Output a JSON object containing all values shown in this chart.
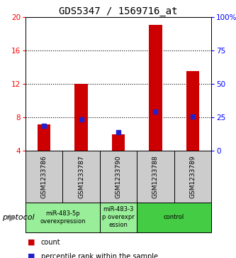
{
  "title": "GDS5347 / 1569716_at",
  "samples": [
    "GSM1233786",
    "GSM1233787",
    "GSM1233790",
    "GSM1233788",
    "GSM1233789"
  ],
  "bar_bottom": 4,
  "bar_tops": [
    7.2,
    12.0,
    6.0,
    19.0,
    13.5
  ],
  "percentile_values": [
    7.0,
    7.8,
    6.2,
    8.7,
    8.1
  ],
  "ylim_left": [
    4,
    20
  ],
  "ylim_right": [
    0,
    100
  ],
  "yticks_left": [
    4,
    8,
    12,
    16,
    20
  ],
  "yticks_right": [
    0,
    25,
    50,
    75,
    100
  ],
  "ytick_labels_right": [
    "0",
    "25",
    "50",
    "75",
    "100%"
  ],
  "bar_color": "#cc0000",
  "marker_color": "#2222cc",
  "grid_color": "#000000",
  "groups": [
    {
      "label": "miR-483-5p\noverexpression",
      "indices": [
        0,
        1
      ],
      "color": "#99ee99"
    },
    {
      "label": "miR-483-3\np overexpr\nession",
      "indices": [
        2
      ],
      "color": "#99ee99"
    },
    {
      "label": "control",
      "indices": [
        3,
        4
      ],
      "color": "#44cc44"
    }
  ],
  "protocol_label": "protocol",
  "legend_count_label": "count",
  "legend_percentile_label": "percentile rank within the sample",
  "background_color": "#ffffff",
  "plot_area_bg": "#ffffff",
  "sample_box_color": "#cccccc",
  "title_fontsize": 10,
  "tick_fontsize": 7.5,
  "sample_fontsize": 6.5,
  "group_fontsize": 6,
  "legend_fontsize": 7
}
